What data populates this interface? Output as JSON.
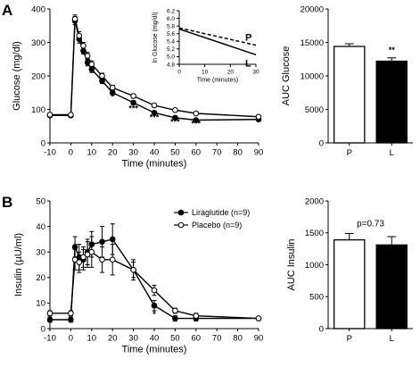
{
  "panels": {
    "a": "A",
    "b": "B"
  },
  "chart_data": [
    {
      "id": "glucose",
      "type": "line",
      "xlabel": "Time (minutes)",
      "ylabel": "Glucose (mg/dl)",
      "xlim": [
        -10,
        90
      ],
      "ylim": [
        0,
        400
      ],
      "xticks": [
        -10,
        0,
        10,
        20,
        30,
        40,
        50,
        60,
        70,
        80,
        90
      ],
      "yticks": [
        0,
        100,
        200,
        300,
        400
      ],
      "series": [
        {
          "key": "liraglutide",
          "fill": "#000000",
          "x": [
            -10,
            0,
            2,
            4,
            6,
            8,
            10,
            15,
            20,
            30,
            40,
            50,
            60,
            90
          ],
          "y": [
            82,
            82,
            365,
            310,
            275,
            240,
            220,
            185,
            150,
            120,
            90,
            75,
            68,
            70
          ],
          "err": [
            5,
            5,
            12,
            12,
            10,
            10,
            10,
            8,
            7,
            6,
            5,
            4,
            4,
            4
          ]
        },
        {
          "key": "placebo",
          "fill": "#ffffff",
          "x": [
            -10,
            0,
            2,
            4,
            6,
            8,
            10,
            15,
            20,
            30,
            40,
            50,
            60,
            90
          ],
          "y": [
            84,
            84,
            370,
            320,
            290,
            260,
            235,
            200,
            165,
            140,
            112,
            98,
            88,
            78
          ],
          "err": [
            5,
            5,
            12,
            12,
            10,
            10,
            10,
            8,
            7,
            6,
            5,
            4,
            4,
            4
          ]
        }
      ],
      "annotations": [
        {
          "x": 20,
          "y": 130,
          "text": "*"
        },
        {
          "x": 30,
          "y": 95,
          "text": "***"
        },
        {
          "x": 40,
          "y": 68,
          "text": "***"
        },
        {
          "x": 50,
          "y": 55,
          "text": "***"
        },
        {
          "x": 60,
          "y": 50,
          "text": "***"
        }
      ]
    },
    {
      "id": "inset",
      "type": "line",
      "xlabel": "Time (minutes)",
      "ylabel": "ln Glucose (mg/dl)",
      "xlim": [
        0,
        30
      ],
      "ylim": [
        4.8,
        6.2
      ],
      "xticks": [
        0,
        10,
        20,
        30
      ],
      "yticks": [
        4.8,
        5.0,
        5.2,
        5.4,
        5.6,
        5.8,
        6.0,
        6.2
      ],
      "series": [
        {
          "key": "P",
          "label": "P",
          "dash": true,
          "x": [
            0,
            30
          ],
          "y": [
            5.75,
            5.3
          ]
        },
        {
          "key": "L",
          "label": "L",
          "dash": false,
          "x": [
            0,
            30
          ],
          "y": [
            5.72,
            5.05
          ]
        }
      ]
    },
    {
      "id": "auc_glucose",
      "type": "bar",
      "ylabel": "AUC Glucose",
      "ylim": [
        0,
        20000
      ],
      "yticks": [
        0,
        5000,
        10000,
        15000,
        20000
      ],
      "categories": [
        "P",
        "L"
      ],
      "values": [
        14400,
        12200
      ],
      "errors": [
        400,
        500
      ],
      "fills": [
        "#ffffff",
        "#000000"
      ],
      "annotation": {
        "bar": 1,
        "text": "**"
      }
    },
    {
      "id": "insulin",
      "type": "line",
      "xlabel": "Time (minutes)",
      "ylabel": "Insulin (µU/ml)",
      "xlim": [
        -10,
        90
      ],
      "ylim": [
        0,
        50
      ],
      "xticks": [
        -10,
        0,
        10,
        20,
        30,
        40,
        50,
        60,
        70,
        80,
        90
      ],
      "yticks": [
        0,
        10,
        20,
        30,
        40,
        50
      ],
      "series": [
        {
          "key": "liraglutide",
          "name": "Liraglutide (n=9)",
          "fill": "#000000",
          "x": [
            -10,
            0,
            2,
            4,
            6,
            8,
            10,
            15,
            20,
            30,
            40,
            50,
            60,
            90
          ],
          "y": [
            3.5,
            3.5,
            32,
            28,
            27,
            30,
            33,
            34,
            35,
            23,
            9,
            4,
            4,
            4
          ],
          "err": [
            1,
            1,
            4,
            5,
            4,
            5,
            5,
            6,
            6,
            3,
            2,
            1,
            1,
            0.5
          ]
        },
        {
          "key": "placebo",
          "name": "Placebo (n=9)",
          "fill": "#ffffff",
          "x": [
            -10,
            0,
            2,
            4,
            6,
            8,
            10,
            15,
            20,
            30,
            40,
            50,
            60,
            90
          ],
          "y": [
            6,
            6,
            27,
            26,
            28,
            29,
            30,
            27,
            27,
            23,
            15,
            7,
            5,
            4
          ],
          "err": [
            1,
            1,
            4,
            4,
            4,
            5,
            6,
            5,
            6,
            4,
            2,
            1,
            1,
            0.5
          ]
        }
      ],
      "annotations": [
        {
          "x": 40,
          "y": 4.5,
          "text": "*"
        },
        {
          "x": 50,
          "y": 1.5,
          "text": "*"
        }
      ],
      "legend": "top-right"
    },
    {
      "id": "auc_insulin",
      "type": "bar",
      "ylabel": "AUC Insulin",
      "ylim": [
        0,
        2000
      ],
      "yticks": [
        0,
        500,
        1000,
        1500,
        2000
      ],
      "categories": [
        "P",
        "L"
      ],
      "values": [
        1390,
        1310
      ],
      "errors": [
        100,
        130
      ],
      "fills": [
        "#ffffff",
        "#000000"
      ],
      "annotation": {
        "text": "p=0.73"
      }
    }
  ]
}
